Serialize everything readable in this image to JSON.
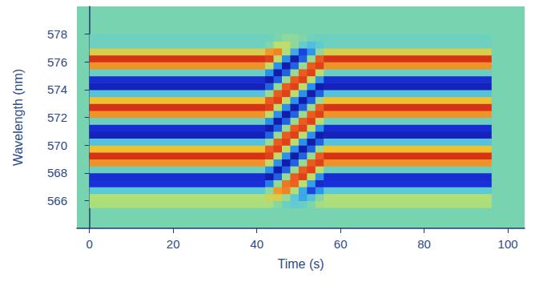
{
  "chart_data": {
    "type": "heatmap",
    "x_label": "Time (s)",
    "y_label": "Wavelength (nm)",
    "xlim": [
      -3,
      104
    ],
    "xticks": [
      0,
      20,
      40,
      60,
      80,
      100
    ],
    "ylim": [
      564,
      580
    ],
    "yticks": [
      566,
      568,
      570,
      572,
      574,
      576,
      578
    ],
    "grid": false,
    "zlim": [
      -1,
      1
    ],
    "x_edges": [
      0,
      42,
      44,
      46,
      48,
      50,
      52,
      54,
      56,
      96
    ],
    "y_edges": [
      565.5,
      566,
      566.5,
      567,
      567.5,
      568,
      568.5,
      569,
      569.5,
      570,
      570.5,
      571,
      571.5,
      572,
      572.5,
      573,
      573.5,
      574,
      574.5,
      575,
      575.5,
      576,
      576.5,
      577,
      577.5,
      578
    ],
    "z": [
      [
        0.2,
        0.22,
        -0.22,
        -0.75,
        -0.77,
        -0.12,
        0.62,
        0.9,
        0.5,
        -0.28,
        -0.85,
        -0.77,
        -0.12,
        0.62,
        0.9,
        0.5,
        -0.28,
        -0.85,
        -0.77,
        -0.12,
        0.62,
        0.9,
        0.39,
        -0.09,
        -0.09
      ],
      [
        0.19,
        0.34,
        0.09,
        -0.55,
        -0.9,
        -0.5,
        0.28,
        0.85,
        0.77,
        0.12,
        -0.62,
        -0.9,
        -0.5,
        0.28,
        0.85,
        0.77,
        0.12,
        -0.62,
        -0.9,
        -0.5,
        0.28,
        0.85,
        0.6,
        0.04,
        -0.07
      ],
      [
        0.06,
        0.38,
        0.6,
        0.1,
        -0.62,
        -0.9,
        -0.5,
        0.28,
        0.85,
        0.77,
        0.12,
        -0.62,
        -0.9,
        -0.5,
        0.28,
        0.85,
        0.77,
        0.12,
        -0.62,
        -0.9,
        -0.5,
        0.28,
        0.66,
        0.26,
        0.01
      ],
      [
        -0.11,
        0.12,
        0.66,
        0.69,
        0.12,
        -0.62,
        -0.9,
        -0.5,
        0.28,
        0.85,
        0.77,
        0.12,
        -0.62,
        -0.9,
        -0.5,
        0.28,
        0.85,
        0.77,
        0.12,
        -0.62,
        -0.9,
        -0.5,
        0.22,
        0.28,
        0.09
      ],
      [
        -0.2,
        -0.22,
        0.22,
        0.75,
        0.77,
        0.12,
        -0.62,
        -0.9,
        -0.5,
        0.28,
        0.85,
        0.77,
        0.12,
        -0.62,
        -0.9,
        -0.5,
        0.28,
        0.85,
        0.77,
        0.12,
        -0.62,
        -0.9,
        -0.39,
        0.09,
        0.09
      ],
      [
        -0.14,
        -0.4,
        -0.39,
        0.25,
        0.85,
        0.77,
        0.12,
        -0.62,
        -0.9,
        -0.5,
        0.28,
        0.85,
        0.77,
        0.12,
        -0.62,
        -0.9,
        -0.5,
        0.28,
        0.85,
        0.77,
        0.12,
        -0.62,
        -0.7,
        -0.17,
        0.03
      ],
      [
        0.03,
        -0.28,
        -0.7,
        -0.44,
        0.28,
        0.85,
        0.77,
        0.12,
        -0.62,
        -0.9,
        -0.5,
        0.28,
        0.85,
        0.77,
        0.12,
        -0.62,
        -0.9,
        -0.5,
        0.28,
        0.85,
        0.77,
        0.12,
        -0.48,
        -0.3,
        -0.06
      ],
      [
        0.17,
        0.05,
        -0.48,
        -0.8,
        -0.5,
        0.28,
        0.85,
        0.77,
        0.12,
        -0.62,
        -0.9,
        -0.5,
        0.28,
        0.85,
        0.77,
        0.12,
        -0.62,
        -0.9,
        -0.5,
        0.28,
        0.85,
        0.77,
        0.09,
        -0.21,
        -0.1
      ],
      [
        0.2,
        0.22,
        -0.22,
        -0.75,
        -0.77,
        -0.12,
        0.62,
        0.9,
        0.5,
        -0.28,
        -0.85,
        -0.77,
        -0.12,
        0.62,
        0.9,
        0.5,
        -0.28,
        -0.85,
        -0.77,
        -0.12,
        0.62,
        0.9,
        0.39,
        -0.09,
        -0.09
      ]
    ]
  }
}
